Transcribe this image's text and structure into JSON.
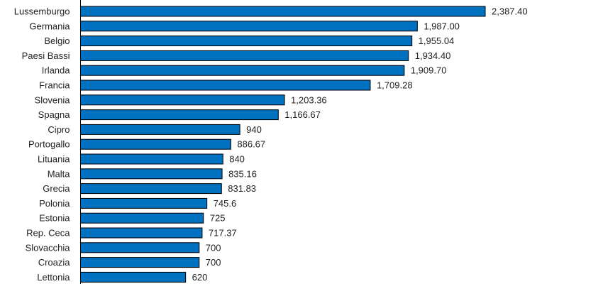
{
  "chart_data": {
    "type": "bar",
    "orientation": "horizontal",
    "title": "",
    "xlabel": "",
    "ylabel": "",
    "xlim": [
      0,
      2600
    ],
    "grid": false,
    "bar_color": "#0070C0",
    "bar_edge_color": "#000000",
    "categories": [
      "Lussemburgo",
      "Germania",
      "Belgio",
      "Paesi Bassi",
      "Irlanda",
      "Francia",
      "Slovenia",
      "Spagna",
      "Cipro",
      "Portogallo",
      "Lituania",
      "Malta",
      "Grecia",
      "Polonia",
      "Estonia",
      "Rep. Ceca",
      "Slovacchia",
      "Croazia",
      "Lettonia"
    ],
    "values": [
      2387.4,
      1987.0,
      1955.04,
      1934.4,
      1909.7,
      1709.28,
      1203.36,
      1166.67,
      940,
      886.67,
      840,
      835.16,
      831.83,
      745.6,
      725,
      717.37,
      700,
      700,
      620
    ],
    "value_labels": [
      "2,387.40",
      "1,987.00",
      "1,955.04",
      "1,934.40",
      "1,909.70",
      "1,709.28",
      "1,203.36",
      "1,166.67",
      "940",
      "886.67",
      "840",
      "835.16",
      "831.83",
      "745.6",
      "725",
      "717.37",
      "700",
      "700",
      "620"
    ]
  }
}
